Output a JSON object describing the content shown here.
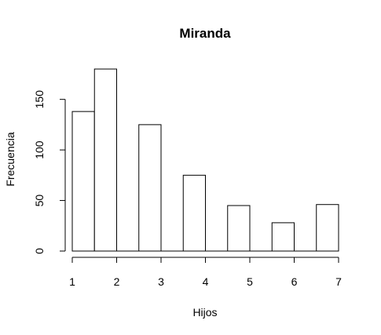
{
  "chart_data": {
    "type": "bar",
    "title": "Miranda",
    "xlabel": "Hijos",
    "ylabel": "Frecuencia",
    "bins": [
      {
        "x0": 1.0,
        "x1": 1.5,
        "value": 138
      },
      {
        "x0": 1.5,
        "x1": 2.0,
        "value": 180
      },
      {
        "x0": 2.0,
        "x1": 2.5,
        "value": 0
      },
      {
        "x0": 2.5,
        "x1": 3.0,
        "value": 125
      },
      {
        "x0": 3.0,
        "x1": 3.5,
        "value": 0
      },
      {
        "x0": 3.5,
        "x1": 4.0,
        "value": 75
      },
      {
        "x0": 4.0,
        "x1": 4.5,
        "value": 0
      },
      {
        "x0": 4.5,
        "x1": 5.0,
        "value": 45
      },
      {
        "x0": 5.0,
        "x1": 5.5,
        "value": 0
      },
      {
        "x0": 5.5,
        "x1": 6.0,
        "value": 28
      },
      {
        "x0": 6.0,
        "x1": 6.5,
        "value": 0
      },
      {
        "x0": 6.5,
        "x1": 7.0,
        "value": 46
      }
    ],
    "xlim": [
      1,
      7
    ],
    "ylim": [
      0,
      180
    ],
    "xticks": [
      "1",
      "2",
      "3",
      "4",
      "5",
      "6",
      "7"
    ],
    "yticks": [
      "0",
      "50",
      "100",
      "150"
    ],
    "grid": false,
    "bar_fill": "#ffffff",
    "bar_stroke": "#000000"
  }
}
